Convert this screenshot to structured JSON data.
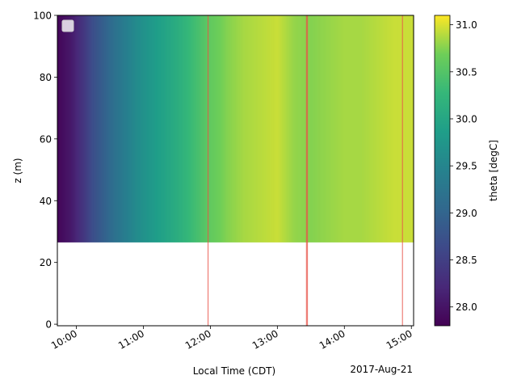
{
  "chart_data": {
    "type": "heatmap",
    "title": "",
    "xlabel": "Local Time (CDT)",
    "ylabel": "z (m)",
    "date_label": "2017-Aug-21",
    "x_range": [
      "09:43",
      "15:02"
    ],
    "x_ticks": [
      {
        "time": "10:00",
        "label": "10:00"
      },
      {
        "time": "11:00",
        "label": "11:00"
      },
      {
        "time": "12:00",
        "label": "12:00"
      },
      {
        "time": "13:00",
        "label": "13:00"
      },
      {
        "time": "14:00",
        "label": "14:00"
      },
      {
        "time": "15:00",
        "label": "15:00"
      }
    ],
    "ylim": [
      -0.5,
      100
    ],
    "y_ticks": [
      0,
      20,
      40,
      60,
      80,
      100
    ],
    "z_range": [
      26.5,
      100
    ],
    "colorbar": {
      "label": "theta [degC]",
      "range": [
        27.8,
        31.1
      ],
      "ticks": [
        28.0,
        28.5,
        29.0,
        29.5,
        30.0,
        30.5,
        31.0
      ],
      "tick_labels": [
        "28.0",
        "28.5",
        "29.0",
        "29.5",
        "30.0",
        "30.5",
        "31.0"
      ],
      "colormap": "viridis"
    },
    "theta_profile": [
      {
        "time": "09:43",
        "theta": 27.85
      },
      {
        "time": "09:55",
        "theta": 28.05
      },
      {
        "time": "10:05",
        "theta": 28.35
      },
      {
        "time": "10:15",
        "theta": 28.7
      },
      {
        "time": "10:25",
        "theta": 28.95
      },
      {
        "time": "10:35",
        "theta": 29.2
      },
      {
        "time": "10:45",
        "theta": 29.4
      },
      {
        "time": "10:55",
        "theta": 29.6
      },
      {
        "time": "11:05",
        "theta": 29.75
      },
      {
        "time": "11:15",
        "theta": 29.9
      },
      {
        "time": "11:30",
        "theta": 30.1
      },
      {
        "time": "11:45",
        "theta": 30.35
      },
      {
        "time": "12:00",
        "theta": 30.6
      },
      {
        "time": "12:15",
        "theta": 30.75
      },
      {
        "time": "12:30",
        "theta": 30.85
      },
      {
        "time": "12:45",
        "theta": 30.9
      },
      {
        "time": "13:00",
        "theta": 30.95
      },
      {
        "time": "13:15",
        "theta": 30.8
      },
      {
        "time": "13:30",
        "theta": 30.75
      },
      {
        "time": "13:45",
        "theta": 30.8
      },
      {
        "time": "14:00",
        "theta": 30.85
      },
      {
        "time": "14:15",
        "theta": 30.85
      },
      {
        "time": "14:30",
        "theta": 30.9
      },
      {
        "time": "14:45",
        "theta": 30.95
      },
      {
        "time": "15:02",
        "theta": 30.95
      }
    ],
    "vertical_markers": [
      "11:58",
      "13:26",
      "13:27",
      "14:52"
    ],
    "marker_color": "#e8544a",
    "legend": {
      "placement": "upper-left",
      "entries": []
    }
  }
}
